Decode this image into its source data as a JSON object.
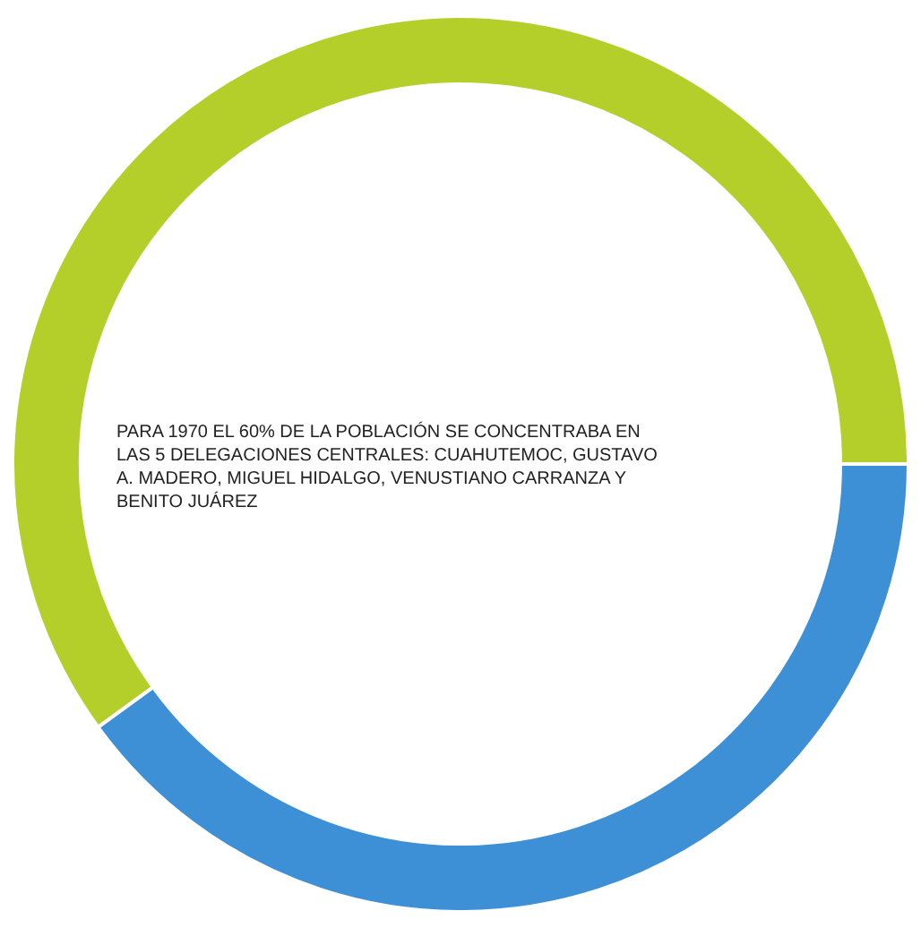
{
  "chart_data": {
    "type": "donut",
    "categories": [
      null,
      null
    ],
    "values": [
      60,
      40
    ],
    "colors": [
      "#b5cf2a",
      "#3d8fd6"
    ],
    "annotations": [
      "PARA 1970 EL 60% DE LA POBLACIÓN SE CONCENTRABA EN LAS 5 DELEGACIONES CENTRALES: CUAHUTEMOC, GUSTAVO A. MADERO, MIGUEL HIDALGO, VENUSTIANO CARRANZA Y BENITO JUÁREZ"
    ]
  }
}
